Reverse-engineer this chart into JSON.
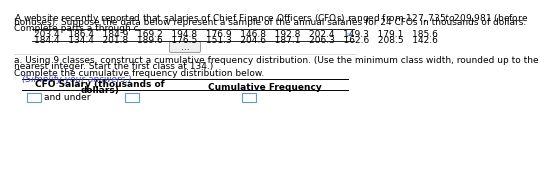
{
  "line1": "A website recently reported that salaries of Chief Finance Officers (CFOs) ranged from $127,735 to $209,981 (before",
  "line2": "bonuses). Suppose the data below represent a sample of the annual salaries for 24 CFOs in thousands of dollars.",
  "line3": "Complete parts a through c.",
  "data_row1": "203.4   186.4   184.9   169.2   194.8   176.9   146.8   192.8   202.4   149.3   179.1   185.6",
  "data_row2": "184.4   134.4   201.8   189.6   176.5   151.3   204.6   187.1   206.3   162.6   208.5   142.6",
  "part_a_line1": "a. Using 9 classes, construct a cumulative frequency distribution. (Use the minimum class width, rounded up to the",
  "part_a_line2": "nearest integer. Start the first class at 134.)",
  "complete_text": "Complete the cumulative frequency distribution below.",
  "simplify_text": "(Simplify your answers.)",
  "col1_line1": "CFO Salary (thousands of",
  "col1_line2": "dollars)",
  "col2_header": "Cumulative Frequency",
  "row_label": "and under",
  "bg_color": "#ffffff",
  "text_color": "#000000",
  "box_color": "#6699cc",
  "font_size": 6.5
}
